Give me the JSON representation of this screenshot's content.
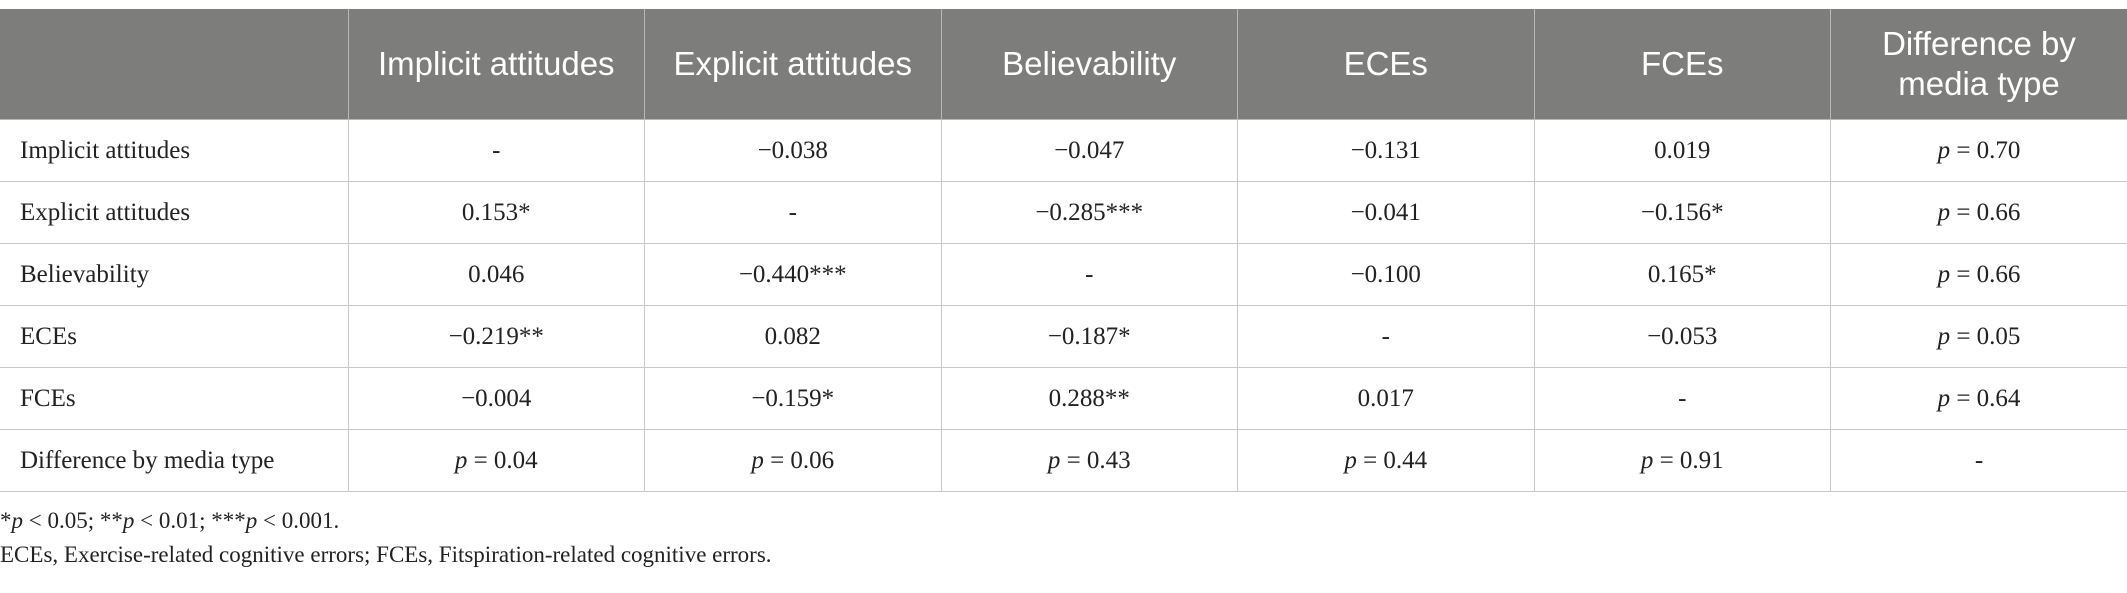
{
  "table": {
    "headers": [
      "",
      "Implicit attitudes",
      "Explicit attitudes",
      "Believability",
      "ECEs",
      "FCEs",
      "Difference by media type"
    ],
    "rows": [
      [
        "Implicit attitudes",
        "-",
        "−0.038",
        "−0.047",
        "−0.131",
        "0.019",
        "p = 0.70"
      ],
      [
        "Explicit attitudes",
        "0.153*",
        "-",
        "−0.285***",
        "−0.041",
        "−0.156*",
        "p = 0.66"
      ],
      [
        "Believability",
        "0.046",
        "−0.440***",
        "-",
        "−0.100",
        "0.165*",
        "p = 0.66"
      ],
      [
        "ECEs",
        "−0.219**",
        "0.082",
        "−0.187*",
        "-",
        "−0.053",
        "p = 0.05"
      ],
      [
        "FCEs",
        "−0.004",
        "−0.159*",
        "0.288**",
        "0.017",
        "-",
        "p = 0.64"
      ],
      [
        "Difference by media type",
        "p = 0.04",
        "p = 0.06",
        "p = 0.43",
        "p = 0.44",
        "p = 0.91",
        "-"
      ]
    ]
  },
  "notes": {
    "significance": "*p < 0.05; **p < 0.01; ***p < 0.001.",
    "abbreviations": "ECEs, Exercise-related cognitive errors; FCEs, Fitspiration-related cognitive errors."
  }
}
